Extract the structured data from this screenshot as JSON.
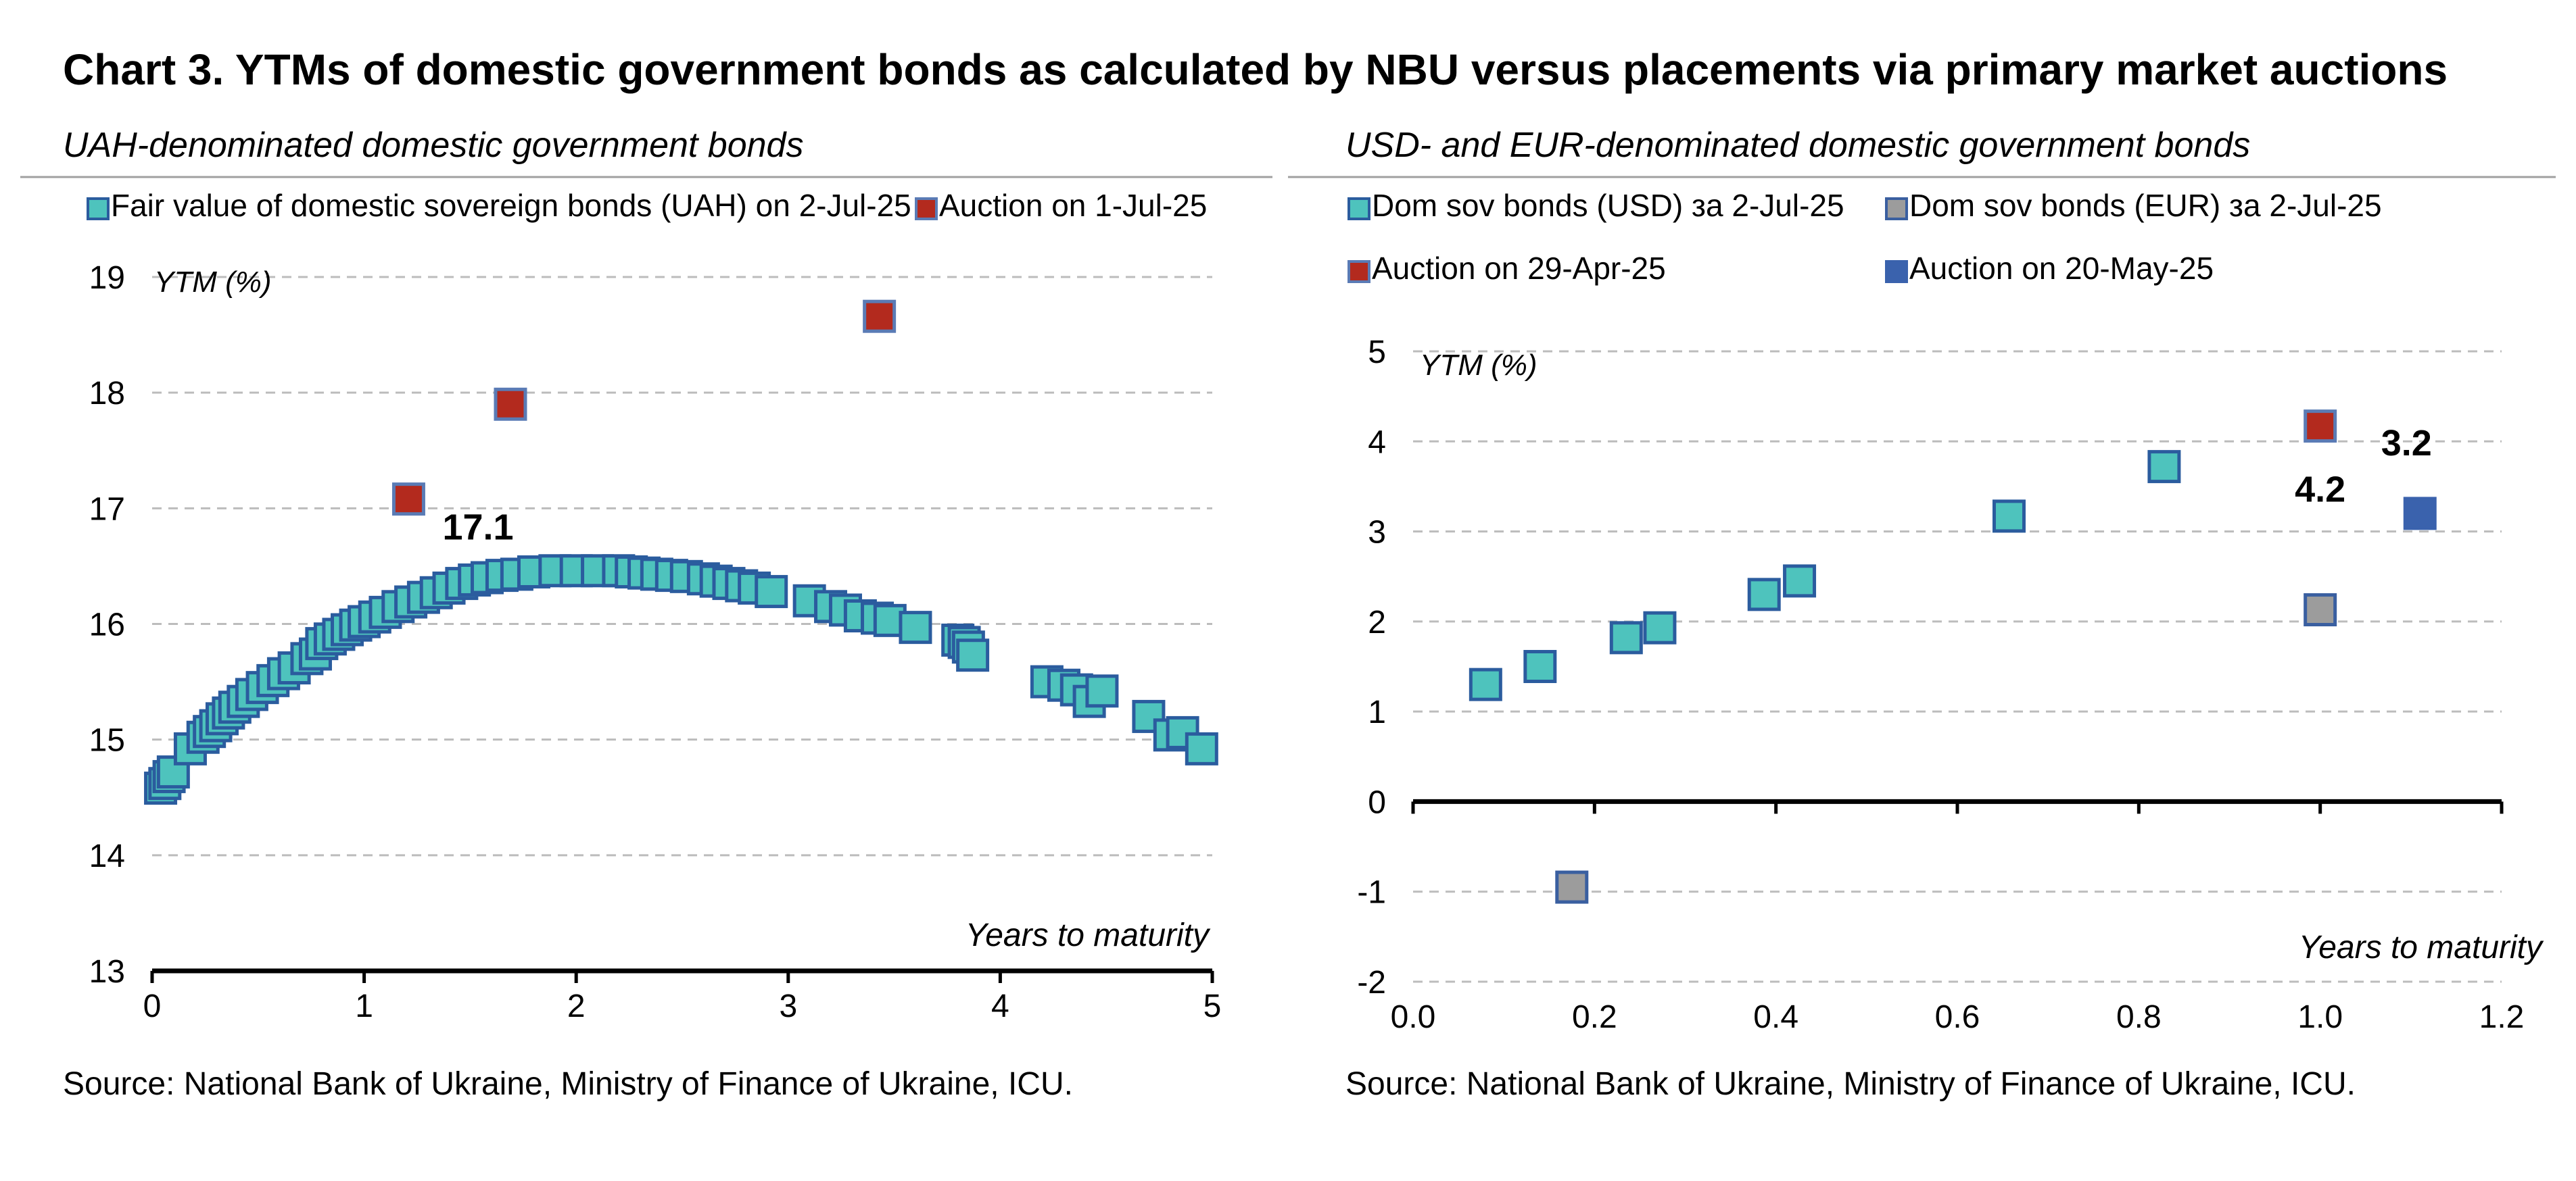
{
  "title": "Chart 3. YTMs of domestic government bonds as calculated by NBU versus placements via primary market auctions",
  "colors": {
    "teal": "#4ec3bd",
    "teal_edge": "#2b5c9e",
    "red": "#b32a1e",
    "red_edge": "#5a7bb5",
    "gray": "#9c9c9c",
    "gray_edge": "#3a5fa0",
    "blue": "#3a62ad",
    "grid": "#bcbcbc",
    "axis": "#000000"
  },
  "chart_data": [
    {
      "type": "scatter",
      "subtitle": "UAH-denominated domestic government bonds",
      "ylabel": "YTM (%)",
      "xlabel": "Years to maturity",
      "xlim": [
        0,
        5
      ],
      "ylim": [
        13,
        19
      ],
      "xticks": [
        "0",
        "1",
        "2",
        "3",
        "4",
        "5"
      ],
      "yticks": [
        "13",
        "14",
        "15",
        "16",
        "17",
        "18",
        "19"
      ],
      "grid": "horizontal dashed",
      "legend_position": "top",
      "source": "Source: National Bank of Ukraine, Ministry of Finance of Ukraine, ICU.",
      "series": [
        {
          "name": "Fair value of domestic sovereign bonds (UAH) on 2-Jul-25",
          "marker": "teal",
          "points": [
            [
              0.04,
              14.58
            ],
            [
              0.06,
              14.62
            ],
            [
              0.08,
              14.68
            ],
            [
              0.1,
              14.72
            ],
            [
              0.18,
              14.92
            ],
            [
              0.24,
              15.02
            ],
            [
              0.27,
              15.07
            ],
            [
              0.3,
              15.12
            ],
            [
              0.33,
              15.18
            ],
            [
              0.36,
              15.23
            ],
            [
              0.39,
              15.28
            ],
            [
              0.43,
              15.33
            ],
            [
              0.47,
              15.39
            ],
            [
              0.52,
              15.45
            ],
            [
              0.57,
              15.51
            ],
            [
              0.62,
              15.57
            ],
            [
              0.67,
              15.62
            ],
            [
              0.73,
              15.7
            ],
            [
              0.77,
              15.74
            ],
            [
              0.8,
              15.83
            ],
            [
              0.84,
              15.87
            ],
            [
              0.88,
              15.91
            ],
            [
              0.92,
              15.95
            ],
            [
              0.96,
              15.99
            ],
            [
              1.0,
              16.02
            ],
            [
              1.05,
              16.06
            ],
            [
              1.1,
              16.1
            ],
            [
              1.16,
              16.15
            ],
            [
              1.22,
              16.19
            ],
            [
              1.28,
              16.23
            ],
            [
              1.34,
              16.27
            ],
            [
              1.4,
              16.31
            ],
            [
              1.46,
              16.35
            ],
            [
              1.52,
              16.38
            ],
            [
              1.58,
              16.4
            ],
            [
              1.65,
              16.42
            ],
            [
              1.72,
              16.43
            ],
            [
              1.8,
              16.45
            ],
            [
              1.9,
              16.46
            ],
            [
              2.0,
              16.46
            ],
            [
              2.1,
              16.46
            ],
            [
              2.2,
              16.46
            ],
            [
              2.26,
              16.45
            ],
            [
              2.32,
              16.44
            ],
            [
              2.38,
              16.43
            ],
            [
              2.45,
              16.42
            ],
            [
              2.52,
              16.41
            ],
            [
              2.6,
              16.39
            ],
            [
              2.66,
              16.37
            ],
            [
              2.72,
              16.35
            ],
            [
              2.78,
              16.33
            ],
            [
              2.84,
              16.31
            ],
            [
              2.92,
              16.28
            ],
            [
              3.1,
              16.2
            ],
            [
              3.2,
              16.15
            ],
            [
              3.27,
              16.12
            ],
            [
              3.34,
              16.07
            ],
            [
              3.42,
              16.05
            ],
            [
              3.48,
              16.03
            ],
            [
              3.6,
              15.97
            ],
            [
              3.8,
              15.86
            ],
            [
              3.83,
              15.84
            ],
            [
              3.85,
              15.8
            ],
            [
              3.87,
              15.73
            ],
            [
              4.22,
              15.5
            ],
            [
              4.3,
              15.47
            ],
            [
              4.36,
              15.43
            ],
            [
              4.42,
              15.33
            ],
            [
              4.48,
              15.42
            ],
            [
              4.7,
              15.2
            ],
            [
              4.8,
              15.04
            ],
            [
              4.86,
              15.06
            ],
            [
              4.95,
              14.92
            ]
          ]
        },
        {
          "name": "Auction on 1-Jul-25",
          "marker": "red",
          "points": [
            [
              1.21,
              17.08
            ],
            [
              1.69,
              17.9
            ],
            [
              3.43,
              18.66
            ]
          ]
        }
      ],
      "annotations": [
        {
          "text": "17.1",
          "x": 1.21,
          "y": 17.08
        }
      ]
    },
    {
      "type": "scatter",
      "subtitle": "USD- and EUR-denominated domestic government bonds",
      "ylabel": "YTM (%)",
      "xlabel": "Years to maturity",
      "xlim": [
        0,
        1.2
      ],
      "ylim": [
        -2,
        5
      ],
      "xticks": [
        "0.0",
        "0.2",
        "0.4",
        "0.6",
        "0.8",
        "1.0",
        "1.2"
      ],
      "yticks": [
        "-2",
        "-1",
        "0",
        "1",
        "2",
        "3",
        "4",
        "5"
      ],
      "grid": "horizontal dashed",
      "legend_position": "top",
      "source": "Source: National Bank of Ukraine, Ministry of Finance of Ukraine, ICU.",
      "series": [
        {
          "name": "Dom sov bonds (USD) за 2-Jul-25",
          "marker": "teal",
          "points": [
            [
              0.08,
              1.3
            ],
            [
              0.14,
              1.5
            ],
            [
              0.235,
              1.82
            ],
            [
              0.272,
              1.93
            ],
            [
              0.387,
              2.3
            ],
            [
              0.426,
              2.45
            ],
            [
              0.657,
              3.17
            ],
            [
              0.828,
              3.72
            ]
          ]
        },
        {
          "name": "Dom sov bonds (EUR) за 2-Jul-25",
          "marker": "gray",
          "points": [
            [
              0.175,
              -0.95
            ],
            [
              1.0,
              2.13
            ]
          ]
        },
        {
          "name": "Auction on 29-Apr-25",
          "marker": "red",
          "points": [
            [
              1.0,
              4.17
            ]
          ]
        },
        {
          "name": "Auction on 20-May-25",
          "marker": "blue",
          "points": [
            [
              1.11,
              3.2
            ]
          ]
        }
      ],
      "annotations": [
        {
          "text": "4.2",
          "x": 1.0,
          "y": 4.17
        },
        {
          "text": "3.2",
          "x": 1.11,
          "y": 3.2
        }
      ]
    }
  ]
}
